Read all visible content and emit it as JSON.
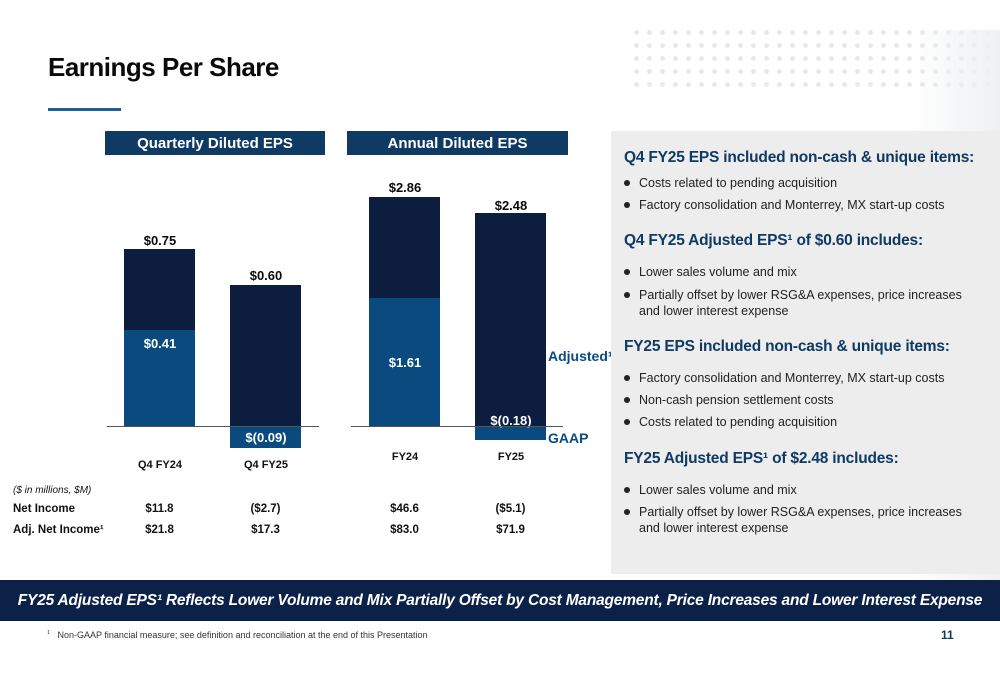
{
  "slide": {
    "title": "Earnings Per Share",
    "page_number": "11",
    "footnote_marker": "1",
    "footnote": "Non-GAAP financial measure; see definition and reconciliation at the end of this Presentation",
    "banner": "FY25 Adjusted EPS¹ Reflects Lower Volume and Mix Partially Offset by Cost Management, Price Increases and Lower Interest Expense"
  },
  "charts": {
    "quarterly_header": "Quarterly Diluted EPS",
    "annual_header": "Annual Diluted EPS",
    "legend_adjusted": "Adjusted¹",
    "legend_gaap": "GAAP",
    "units_note": "($ in millions, $M)",
    "row_net_income": "Net Income",
    "row_adj_net_income": "Adj. Net Income¹",
    "q4fy24": {
      "label": "Q4 FY24",
      "adjusted": "$0.75",
      "gaap": "$0.41",
      "net_income": "$11.8",
      "adj_net_income": "$21.8"
    },
    "q4fy25": {
      "label": "Q4 FY25",
      "adjusted": "$0.60",
      "gaap": "$(0.09)",
      "net_income": "($2.7)",
      "adj_net_income": "$17.3"
    },
    "fy24": {
      "label": "FY24",
      "adjusted": "$2.86",
      "gaap": "$1.61",
      "net_income": "$46.6",
      "adj_net_income": "$83.0"
    },
    "fy25": {
      "label": "FY25",
      "adjusted": "$2.48",
      "gaap": "$(0.18)",
      "net_income": "($5.1)",
      "adj_net_income": "$71.9"
    }
  },
  "chart_data": [
    {
      "type": "bar",
      "title": "Quarterly Diluted EPS",
      "categories": [
        "Q4 FY24",
        "Q4 FY25"
      ],
      "series": [
        {
          "name": "Adjusted¹",
          "values": [
            0.75,
            0.6
          ]
        },
        {
          "name": "GAAP",
          "values": [
            0.41,
            -0.09
          ]
        }
      ]
    },
    {
      "type": "bar",
      "title": "Annual Diluted EPS",
      "categories": [
        "FY24",
        "FY25"
      ],
      "series": [
        {
          "name": "Adjusted¹",
          "values": [
            2.86,
            2.48
          ]
        },
        {
          "name": "GAAP",
          "values": [
            1.61,
            -0.18
          ]
        }
      ]
    }
  ],
  "panel": {
    "h1": "Q4 FY25 EPS included non-cash & unique items:",
    "s1": [
      "Costs related to pending acquisition",
      "Factory consolidation and Monterrey, MX start-up costs"
    ],
    "h2": "Q4 FY25 Adjusted EPS¹ of $0.60 includes:",
    "s2": [
      "Lower sales volume and mix",
      "Partially offset by lower RSG&A expenses, price increases and lower interest expense"
    ],
    "h3": "FY25 EPS included non-cash & unique items:",
    "s3": [
      "Factory consolidation and Monterrey, MX start-up costs",
      "Non-cash pension settlement costs",
      "Costs related to pending acquisition"
    ],
    "h4": "FY25 Adjusted EPS¹ of $2.48 includes:",
    "s4": [
      "Lower sales volume and mix",
      "Partially offset by lower RSG&A expenses, price increases and lower interest expense"
    ]
  },
  "colors": {
    "navy": "#0c1d40",
    "blue": "#0b4a7f",
    "header": "#0e3a63",
    "banner": "#0c2148"
  }
}
